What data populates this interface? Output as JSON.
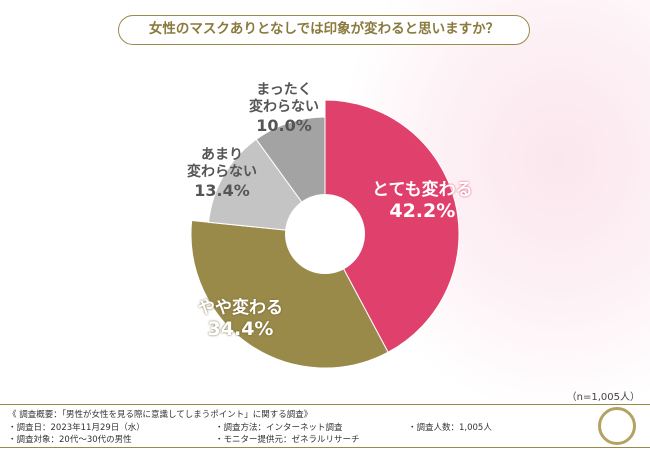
{
  "title": "女性のマスクありとなしでは印象が変わると思いますか？",
  "sample_note": "（n=1,005人）",
  "footer": {
    "summary": "《 調査概要：「男性が女性を見る際に意識してしまうポイント」に関する調査》",
    "date": "・調査日：2023年11月29日（水）",
    "method": "・調査方法：インターネット調査",
    "count": "・調査人数：1,005人",
    "target": "・調査対象：20代〜30代の男性",
    "provider": "・モニター提供元：ゼネラルリサーチ"
  },
  "chart_data": {
    "type": "pie",
    "donut": true,
    "slices": [
      {
        "label": "とても変わる",
        "value": 42.2,
        "display": "42.2%",
        "color": "#e0406c"
      },
      {
        "label": "やや変わる",
        "value": 34.4,
        "display": "34.4%",
        "color": "#9a8a4a"
      },
      {
        "label": "あまり変わらない",
        "value": 13.4,
        "display": "13.4%",
        "color": "#c4c4c4"
      },
      {
        "label": "まったく変わらない",
        "value": 10.0,
        "display": "10.0%",
        "color": "#a3a3a3"
      }
    ]
  }
}
